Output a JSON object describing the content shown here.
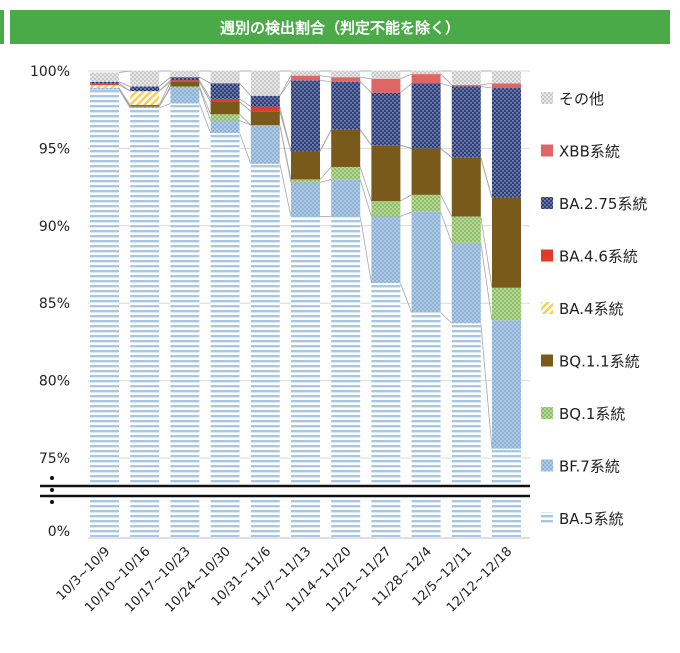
{
  "chart_data": {
    "type": "bar",
    "stacked": true,
    "title": "週別の検出割合（判定不能を除く）",
    "categories": [
      "10/3~10/9",
      "10/10~10/16",
      "10/17~10/23",
      "10/24~10/30",
      "10/31~11/6",
      "11/7~11/13",
      "11/14~11/20",
      "11/21~11/27",
      "11/28~12/4",
      "12/5~12/11",
      "12/12~12/18"
    ],
    "yticks": [
      "100%",
      "95%",
      "90%",
      "85%",
      "80%",
      "75%",
      "0%"
    ],
    "axis_break": true,
    "ylim": [
      75,
      100
    ],
    "grid": true,
    "legend_position": "right",
    "series": [
      {
        "name": "BA.5系統",
        "color": "#a9c7e0",
        "pattern": "hstripe",
        "values": [
          98.8,
          97.6,
          97.9,
          96.0,
          94.0,
          90.6,
          90.6,
          86.3,
          84.4,
          83.7,
          75.6
        ]
      },
      {
        "name": "BF.7系統",
        "color": "#8fb3d8",
        "pattern": "dots",
        "values": [
          0.1,
          0.1,
          1.0,
          0.8,
          2.5,
          2.2,
          2.4,
          4.3,
          6.5,
          5.2,
          8.3
        ]
      },
      {
        "name": "BQ.1系統",
        "color": "#8fbf66",
        "pattern": "dots",
        "values": [
          0.0,
          0.0,
          0.1,
          0.4,
          0.0,
          0.2,
          0.8,
          1.0,
          1.1,
          1.7,
          2.1
        ]
      },
      {
        "name": "BQ.1.1系統",
        "color": "#7a5a1a",
        "pattern": "solid",
        "values": [
          0.0,
          0.1,
          0.3,
          0.8,
          0.9,
          1.8,
          2.4,
          3.6,
          3.0,
          3.8,
          5.8
        ]
      },
      {
        "name": "BA.4系統",
        "color": "#f6cf55",
        "pattern": "diag",
        "values": [
          0.2,
          0.9,
          0.0,
          0.0,
          0.0,
          0.0,
          0.0,
          0.0,
          0.0,
          0.0,
          0.0
        ]
      },
      {
        "name": "BA.4.6系統",
        "color": "#e03a2a",
        "pattern": "solid",
        "values": [
          0.1,
          0.0,
          0.1,
          0.2,
          0.3,
          0.0,
          0.0,
          0.0,
          0.0,
          0.0,
          0.0
        ]
      },
      {
        "name": "BA.2.75系統",
        "color": "#2b3d7a",
        "pattern": "dots",
        "values": [
          0.1,
          0.3,
          0.2,
          1.0,
          0.7,
          4.6,
          3.1,
          3.4,
          4.2,
          4.6,
          7.1
        ]
      },
      {
        "name": "XBB系統",
        "color": "#e06565",
        "pattern": "solid",
        "values": [
          0.0,
          0.0,
          0.0,
          0.0,
          0.0,
          0.3,
          0.3,
          0.9,
          0.6,
          0.1,
          0.3
        ]
      },
      {
        "name": "その他",
        "color": "#cfcfcf",
        "pattern": "dots",
        "values": [
          0.6,
          1.0,
          0.4,
          0.8,
          1.6,
          0.3,
          0.4,
          0.5,
          0.2,
          0.9,
          0.8
        ]
      }
    ],
    "legend_order": [
      "その他",
      "XBB系統",
      "BA.2.75系統",
      "BA.4.6系統",
      "BA.4系統",
      "BQ.1.1系統",
      "BQ.1系統",
      "BF.7系統",
      "BA.5系統"
    ]
  }
}
